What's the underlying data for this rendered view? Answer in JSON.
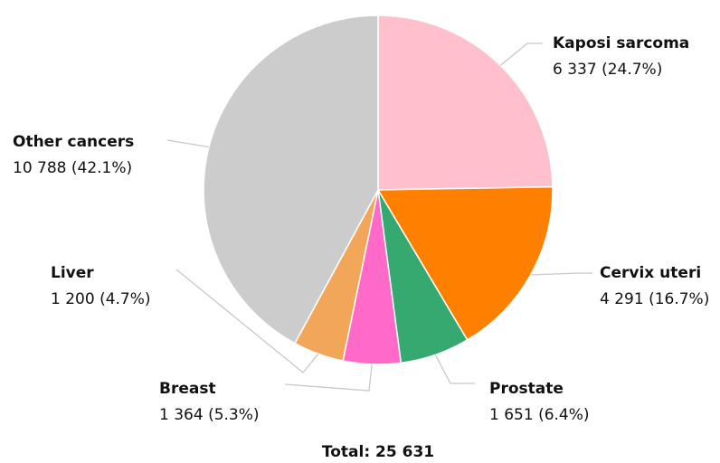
{
  "chart_data": {
    "type": "pie",
    "categories": [
      "Kaposi sarcoma",
      "Cervix uteri",
      "Prostate",
      "Breast",
      "Liver",
      "Other cancers"
    ],
    "values": [
      6337,
      4291,
      1651,
      1364,
      1200,
      10788
    ],
    "value_labels": [
      "6 337 (24.7%)",
      "4 291 (16.7%)",
      "1 651 (6.4%)",
      "1 364 (5.3%)",
      "1 200 (4.7%)",
      "10 788 (42.1%)"
    ],
    "colors": [
      "#ffc0cb",
      "#ff7f00",
      "#35a96f",
      "#ff69c8",
      "#f2a65a",
      "#cccccc"
    ],
    "total_label": "Total: 25 631"
  }
}
